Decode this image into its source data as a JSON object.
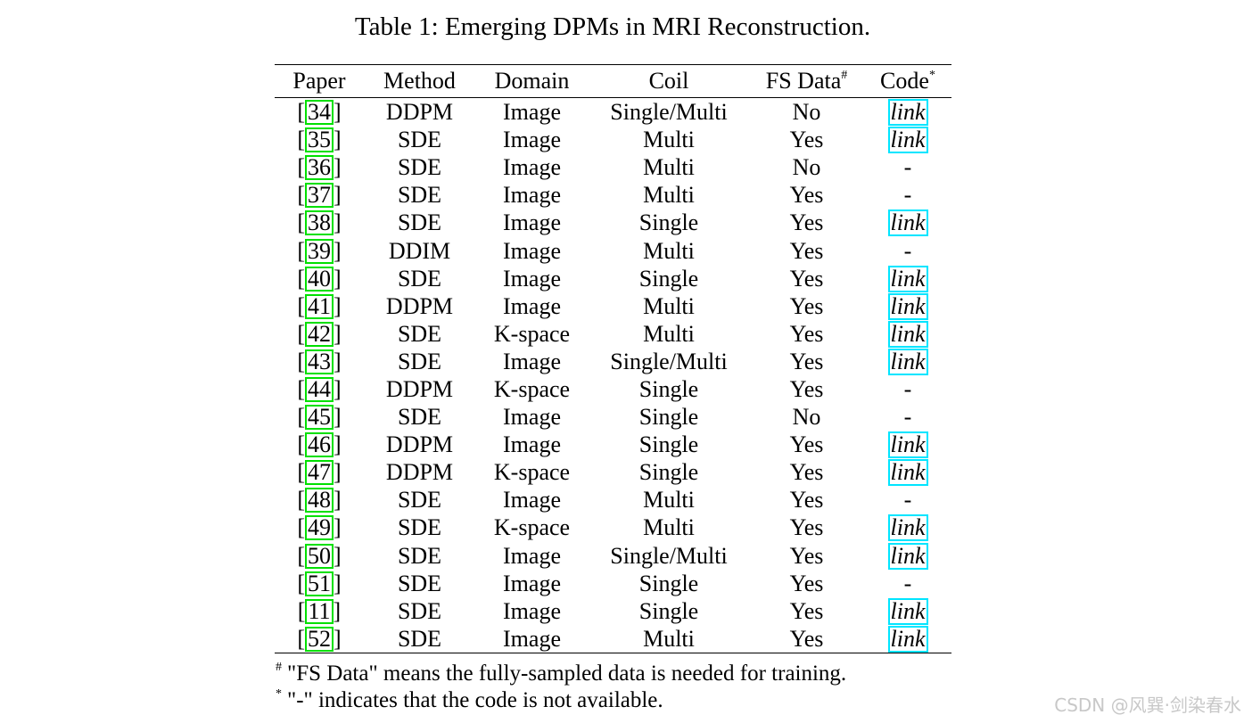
{
  "caption": "Table 1: Emerging DPMs in MRI Reconstruction.",
  "headers": {
    "paper": "Paper",
    "method": "Method",
    "domain": "Domain",
    "coil": "Coil",
    "fs_data": "FS Data",
    "fs_data_mark": "#",
    "code": "Code",
    "code_mark": "*"
  },
  "rows": [
    {
      "ref": "34",
      "method": "DDPM",
      "domain": "Image",
      "coil": "Single/Multi",
      "fs": "No",
      "code": "link"
    },
    {
      "ref": "35",
      "method": "SDE",
      "domain": "Image",
      "coil": "Multi",
      "fs": "Yes",
      "code": "link"
    },
    {
      "ref": "36",
      "method": "SDE",
      "domain": "Image",
      "coil": "Multi",
      "fs": "No",
      "code": "-"
    },
    {
      "ref": "37",
      "method": "SDE",
      "domain": "Image",
      "coil": "Multi",
      "fs": "Yes",
      "code": "-"
    },
    {
      "ref": "38",
      "method": "SDE",
      "domain": "Image",
      "coil": "Single",
      "fs": "Yes",
      "code": "link"
    },
    {
      "ref": "39",
      "method": "DDIM",
      "domain": "Image",
      "coil": "Multi",
      "fs": "Yes",
      "code": "-"
    },
    {
      "ref": "40",
      "method": "SDE",
      "domain": "Image",
      "coil": "Single",
      "fs": "Yes",
      "code": "link"
    },
    {
      "ref": "41",
      "method": "DDPM",
      "domain": "Image",
      "coil": "Multi",
      "fs": "Yes",
      "code": "link"
    },
    {
      "ref": "42",
      "method": "SDE",
      "domain": "K-space",
      "coil": "Multi",
      "fs": "Yes",
      "code": "link"
    },
    {
      "ref": "43",
      "method": "SDE",
      "domain": "Image",
      "coil": "Single/Multi",
      "fs": "Yes",
      "code": "link"
    },
    {
      "ref": "44",
      "method": "DDPM",
      "domain": "K-space",
      "coil": "Single",
      "fs": "Yes",
      "code": "-"
    },
    {
      "ref": "45",
      "method": "SDE",
      "domain": "Image",
      "coil": "Single",
      "fs": "No",
      "code": "-"
    },
    {
      "ref": "46",
      "method": "DDPM",
      "domain": "Image",
      "coil": "Single",
      "fs": "Yes",
      "code": "link"
    },
    {
      "ref": "47",
      "method": "DDPM",
      "domain": "K-space",
      "coil": "Single",
      "fs": "Yes",
      "code": "link"
    },
    {
      "ref": "48",
      "method": "SDE",
      "domain": "Image",
      "coil": "Multi",
      "fs": "Yes",
      "code": "-"
    },
    {
      "ref": "49",
      "method": "SDE",
      "domain": "K-space",
      "coil": "Multi",
      "fs": "Yes",
      "code": "link"
    },
    {
      "ref": "50",
      "method": "SDE",
      "domain": "Image",
      "coil": "Single/Multi",
      "fs": "Yes",
      "code": "link"
    },
    {
      "ref": "51",
      "method": "SDE",
      "domain": "Image",
      "coil": "Single",
      "fs": "Yes",
      "code": "-"
    },
    {
      "ref": "11",
      "method": "SDE",
      "domain": "Image",
      "coil": "Single",
      "fs": "Yes",
      "code": "link"
    },
    {
      "ref": "52",
      "method": "SDE",
      "domain": "Image",
      "coil": "Multi",
      "fs": "Yes",
      "code": "link"
    }
  ],
  "footnotes": [
    {
      "mark": "#",
      "text": "\"FS Data\" means the fully-sampled data is needed for training."
    },
    {
      "mark": "*",
      "text": "\"-\" indicates that the code is not available."
    }
  ],
  "watermark": "CSDN @风巽·剑染春水",
  "colors": {
    "ref_box": "#00e000",
    "link_box": "#00e5ff"
  }
}
